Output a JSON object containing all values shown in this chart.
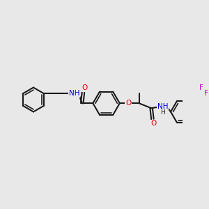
{
  "background_color": "#e8e8e8",
  "bond_color": "#1a1a1a",
  "bond_lw": 1.5,
  "atom_colors": {
    "N": "#0000dd",
    "O": "#dd0000",
    "F": "#cc00cc",
    "H": "#1a1a1a",
    "C": "#1a1a1a"
  },
  "font_size": 7.5,
  "font_size_small": 6.5
}
